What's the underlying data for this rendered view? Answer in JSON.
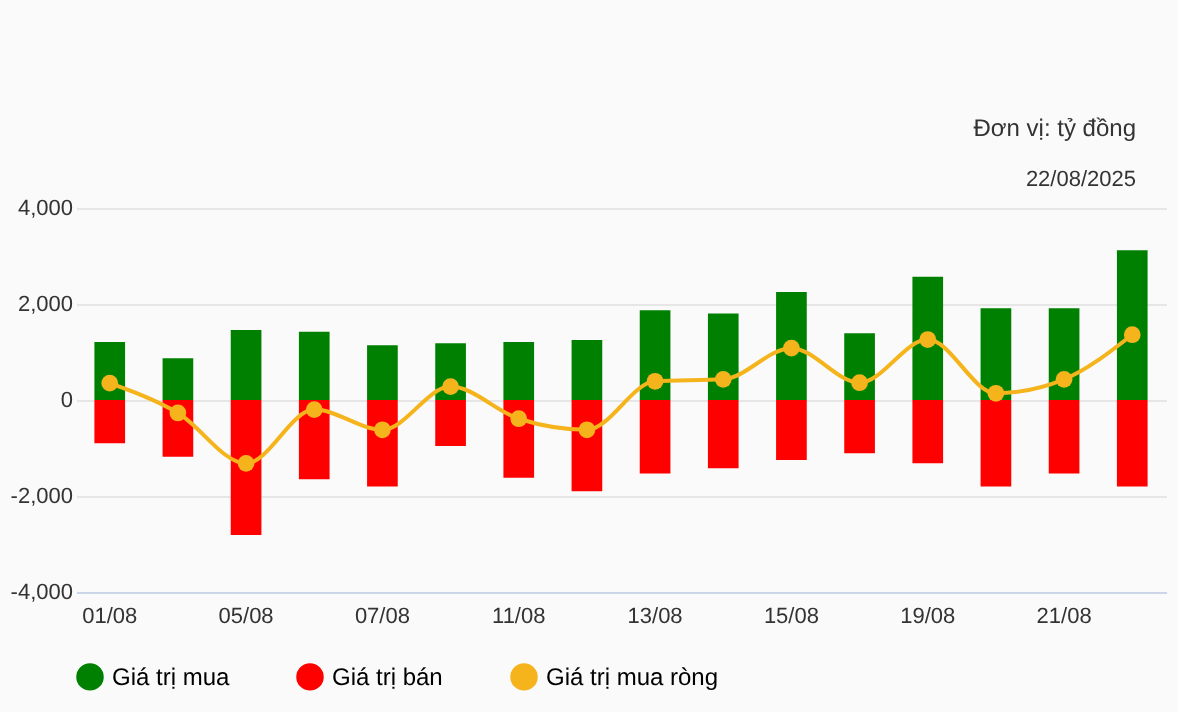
{
  "chart_data": {
    "type": "bar",
    "categories": [
      "01/08",
      null,
      "05/08",
      null,
      "07/08",
      null,
      "11/08",
      null,
      "13/08",
      null,
      "15/08",
      null,
      "19/08",
      null,
      "21/08",
      null
    ],
    "series": [
      {
        "name": "Giá trị mua",
        "color": "#008000",
        "values": [
          1210,
          870,
          1460,
          1420,
          1140,
          1180,
          1210,
          1250,
          1870,
          1800,
          2250,
          1390,
          2570,
          1910,
          1910,
          3120
        ]
      },
      {
        "name": "Giá trị bán",
        "color": "#ff0000",
        "values": [
          -900,
          -1180,
          -2810,
          -1650,
          -1800,
          -960,
          -1620,
          -1900,
          -1530,
          -1420,
          -1250,
          -1110,
          -1320,
          -1800,
          -1530,
          -1800
        ]
      },
      {
        "name": "Giá trị mua ròng",
        "type": "line",
        "color": "#f5b31c",
        "values": [
          350,
          -270,
          -1320,
          -200,
          -620,
          280,
          -390,
          -620,
          390,
          430,
          1080,
          360,
          1260,
          140,
          430,
          1360
        ]
      }
    ],
    "ylim": [
      -4000,
      4000
    ],
    "yticks": [
      {
        "value": -4000,
        "label": "-4,000"
      },
      {
        "value": -2000,
        "label": "-2,000"
      },
      0,
      {
        "value": 2000,
        "label": "2,000"
      },
      {
        "value": 4000,
        "label": "4,000"
      }
    ],
    "stacked": true,
    "grid": "y",
    "legend": "bottom",
    "marker": "circle",
    "annotations": [
      "Đơn vị: tỷ đồng",
      "22/08/2025"
    ]
  }
}
